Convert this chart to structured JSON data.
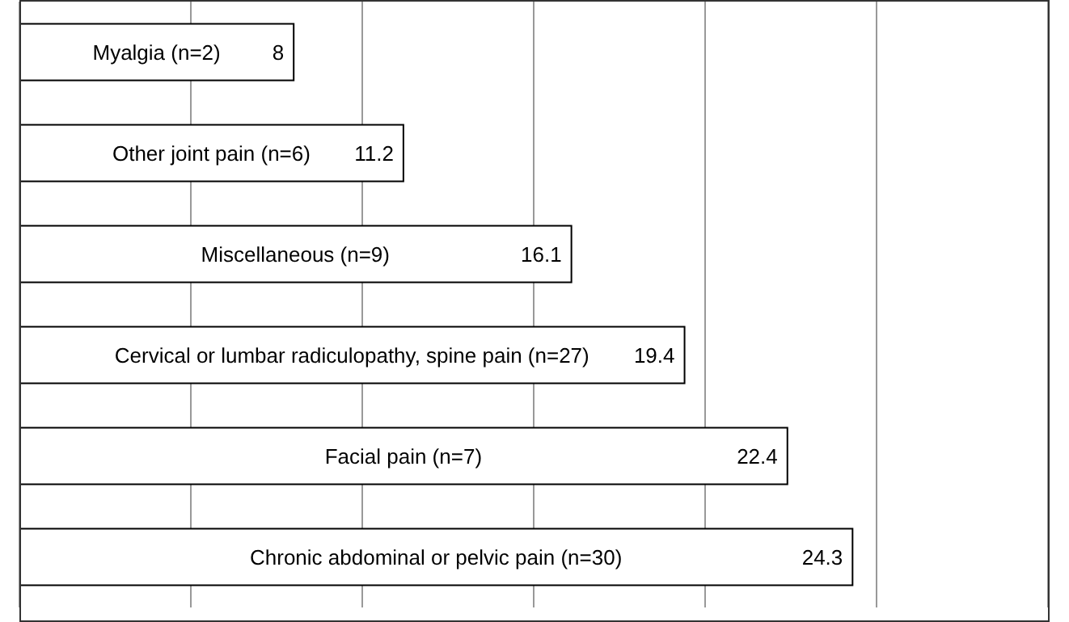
{
  "chart_data": {
    "type": "bar",
    "orientation": "horizontal",
    "categories": [
      "Myalgia (n=2)",
      "Other joint pain (n=6)",
      "Miscellaneous (n=9)",
      "Cervical or lumbar radiculopathy, spine pain (n=27)",
      "Facial pain (n=7)",
      "Chronic abdominal or pelvic pain (n=30)"
    ],
    "values": [
      8,
      11.2,
      16.1,
      19.4,
      22.4,
      24.3
    ],
    "color": "#ffffff",
    "tick_labels": false,
    "grid": "x",
    "data_labels": true
  }
}
